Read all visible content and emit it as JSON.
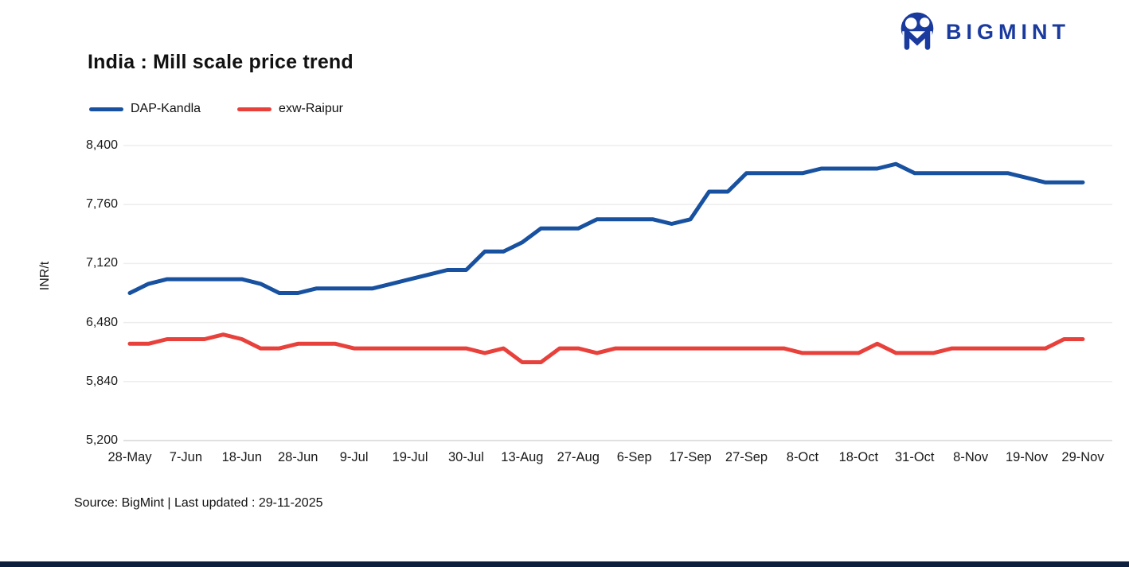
{
  "header": {
    "brand": "BIGMINT",
    "brand_color": "#1a3a9e",
    "logo_icon": "bigmint-people-m-icon"
  },
  "title": "India : Mill scale price trend",
  "legend": [
    {
      "label": "DAP-Kandla",
      "color": "#17519f"
    },
    {
      "label": "exw-Raipur",
      "color": "#e8413c"
    }
  ],
  "footer": {
    "source_text": "Source: BigMint | Last updated : 29-11-2025",
    "bar_color": "#0d1f3c"
  },
  "chart_data": {
    "type": "line",
    "title": "India : Mill scale price trend",
    "xlabel": "",
    "ylabel": "INR/t",
    "ylim": [
      5200,
      8400
    ],
    "y_ticks": [
      8400,
      7760,
      7120,
      6480,
      5840,
      5200
    ],
    "grid": "horizontal",
    "legend_position": "top-left",
    "categories": [
      "28-May",
      "7-Jun",
      "18-Jun",
      "28-Jun",
      "9-Jul",
      "19-Jul",
      "30-Jul",
      "13-Aug",
      "27-Aug",
      "6-Sep",
      "17-Sep",
      "27-Sep",
      "8-Oct",
      "18-Oct",
      "31-Oct",
      "8-Nov",
      "19-Nov",
      "29-Nov"
    ],
    "points_per_category_interval": 3,
    "series": [
      {
        "name": "DAP-Kandla",
        "color": "#17519f",
        "values": [
          6800,
          6900,
          6950,
          6950,
          6950,
          6950,
          6950,
          6900,
          6800,
          6800,
          6850,
          6850,
          6850,
          6850,
          6900,
          6950,
          7000,
          7050,
          7050,
          7250,
          7250,
          7350,
          7500,
          7500,
          7500,
          7600,
          7600,
          7600,
          7600,
          7550,
          7600,
          7900,
          7900,
          8100,
          8100,
          8100,
          8100,
          8150,
          8150,
          8150,
          8150,
          8200,
          8100,
          8100,
          8100,
          8100,
          8100,
          8100,
          8050,
          8000,
          8000,
          8000
        ]
      },
      {
        "name": "exw-Raipur",
        "color": "#e8413c",
        "values": [
          6250,
          6250,
          6300,
          6300,
          6300,
          6350,
          6300,
          6200,
          6200,
          6250,
          6250,
          6250,
          6200,
          6200,
          6200,
          6200,
          6200,
          6200,
          6200,
          6150,
          6200,
          6050,
          6050,
          6200,
          6200,
          6150,
          6200,
          6200,
          6200,
          6200,
          6200,
          6200,
          6200,
          6200,
          6200,
          6200,
          6150,
          6150,
          6150,
          6150,
          6250,
          6150,
          6150,
          6150,
          6200,
          6200,
          6200,
          6200,
          6200,
          6200,
          6300,
          6300
        ]
      }
    ]
  }
}
